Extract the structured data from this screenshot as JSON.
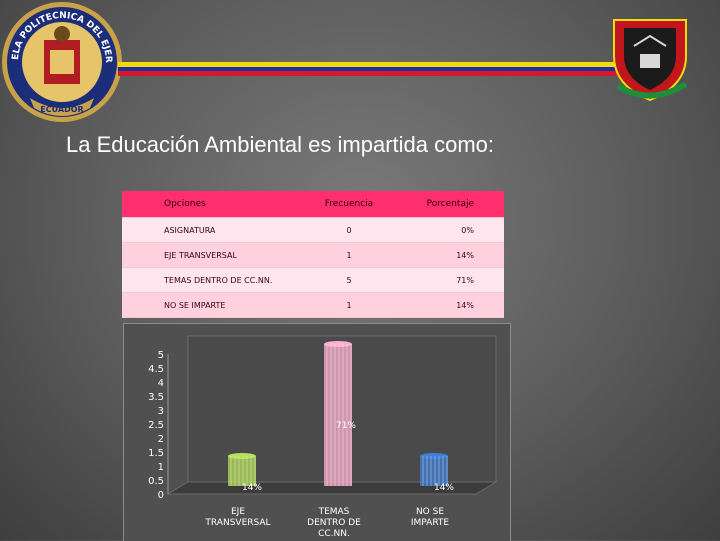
{
  "header": {
    "left_logo_name": "escuela-politecnica-del-ejercito-seal",
    "right_logo_name": "shield-emblem",
    "stripe_colors": [
      "#f2d90a",
      "#1d2f9e",
      "#d21a2a"
    ]
  },
  "title": "La Educación Ambiental es impartida como:",
  "table": {
    "headers": [
      "Opciones",
      "Frecuencia",
      "Porcentaje"
    ],
    "rows": [
      [
        "ASIGNATURA",
        "0",
        "0%"
      ],
      [
        "EJE TRANSVERSAL",
        "1",
        "14%"
      ],
      [
        "TEMAS DENTRO DE CC.NN.",
        "5",
        "71%"
      ],
      [
        "NO SE IMPARTE",
        "1",
        "14%"
      ]
    ]
  },
  "chart_data": {
    "type": "bar",
    "categories": [
      "EJE TRANSVERSAL",
      "TEMAS DENTRO DE CC.NN.",
      "NO SE IMPARTE"
    ],
    "values": [
      1,
      5,
      1
    ],
    "data_labels": [
      "14%",
      "71%",
      "14%"
    ],
    "ylim": [
      0,
      5
    ],
    "yticks": [
      "0",
      "0.5",
      "1",
      "1.5",
      "2",
      "2.5",
      "3",
      "3.5",
      "4",
      "4.5",
      "5"
    ],
    "bar_colors": [
      "#b6e05a",
      "#ffb0d0",
      "#3f7fd8"
    ],
    "title": "",
    "xlabel": "",
    "ylabel": "",
    "grid": false,
    "legend": "none"
  }
}
